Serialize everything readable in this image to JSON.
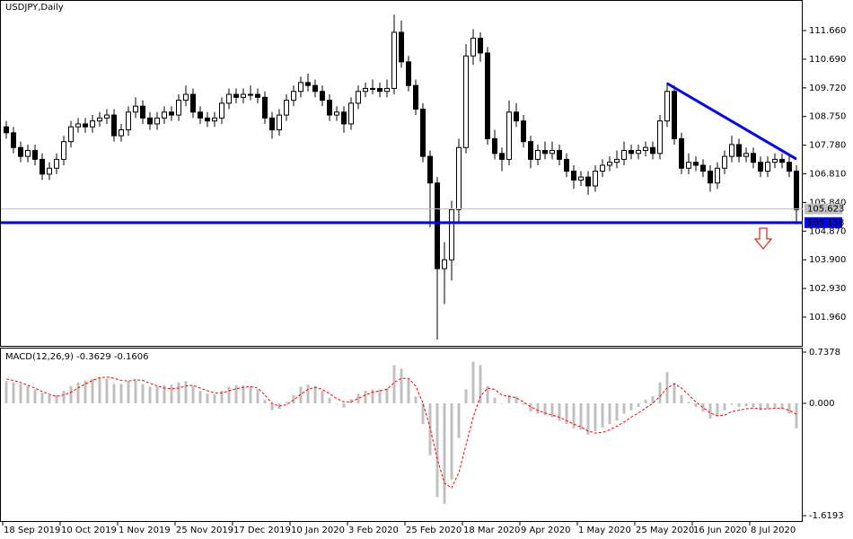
{
  "chart_data": [
    {
      "type": "candlestick",
      "title": "USDJPY,Daily",
      "categories": [
        "18 Sep 2019",
        null,
        null,
        null,
        null,
        null,
        null,
        null,
        "10 Oct 2019",
        null,
        null,
        null,
        null,
        null,
        null,
        null,
        "1 Nov 2019",
        null,
        null,
        null,
        null,
        null,
        null,
        null,
        "25 Nov 2019",
        null,
        null,
        null,
        null,
        null,
        null,
        null,
        "17 Dec 2019",
        null,
        null,
        null,
        null,
        null,
        null,
        null,
        "10 Jan 2020",
        null,
        null,
        null,
        null,
        null,
        null,
        null,
        "3 Feb 2020",
        null,
        null,
        null,
        null,
        null,
        null,
        null,
        "25 Feb 2020",
        null,
        null,
        null,
        null,
        null,
        null,
        null,
        "18 Mar 2020",
        null,
        null,
        null,
        null,
        null,
        null,
        null,
        "9 Apr 2020",
        null,
        null,
        null,
        null,
        null,
        null,
        null,
        "1 May 2020",
        null,
        null,
        null,
        null,
        null,
        null,
        null,
        "25 May 2020",
        null,
        null,
        null,
        null,
        null,
        null,
        null,
        "16 Jun 2020",
        null,
        null,
        null,
        null,
        null,
        null,
        null,
        "8 Jul 2020",
        null,
        null,
        null,
        null,
        null,
        null
      ],
      "candles": [
        [
          108.4,
          108.6,
          108.0,
          108.2
        ],
        [
          108.2,
          108.4,
          107.5,
          107.7
        ],
        [
          107.7,
          107.9,
          107.2,
          107.4
        ],
        [
          107.4,
          107.8,
          107.2,
          107.6
        ],
        [
          107.6,
          107.8,
          107.1,
          107.3
        ],
        [
          107.3,
          107.5,
          106.6,
          106.8
        ],
        [
          106.8,
          107.2,
          106.6,
          107.0
        ],
        [
          107.0,
          107.5,
          106.8,
          107.3
        ],
        [
          107.3,
          108.1,
          107.1,
          107.9
        ],
        [
          107.9,
          108.6,
          107.7,
          108.4
        ],
        [
          108.4,
          108.7,
          108.2,
          108.5
        ],
        [
          108.5,
          108.7,
          108.2,
          108.4
        ],
        [
          108.4,
          108.8,
          108.2,
          108.6
        ],
        [
          108.6,
          108.9,
          108.4,
          108.7
        ],
        [
          108.7,
          109.0,
          108.5,
          108.8
        ],
        [
          108.8,
          109.0,
          107.9,
          108.1
        ],
        [
          108.1,
          108.5,
          107.9,
          108.3
        ],
        [
          108.3,
          109.1,
          108.1,
          108.9
        ],
        [
          108.9,
          109.4,
          108.7,
          109.1
        ],
        [
          109.1,
          109.3,
          108.5,
          108.7
        ],
        [
          108.7,
          108.9,
          108.3,
          108.5
        ],
        [
          108.5,
          108.9,
          108.3,
          108.7
        ],
        [
          108.7,
          109.1,
          108.5,
          108.9
        ],
        [
          108.9,
          109.1,
          108.6,
          108.8
        ],
        [
          108.8,
          109.5,
          108.6,
          109.3
        ],
        [
          109.3,
          109.8,
          109.1,
          109.5
        ],
        [
          109.5,
          109.7,
          108.7,
          108.9
        ],
        [
          108.9,
          109.1,
          108.5,
          108.7
        ],
        [
          108.7,
          108.9,
          108.4,
          108.6
        ],
        [
          108.6,
          108.9,
          108.4,
          108.7
        ],
        [
          108.7,
          109.4,
          108.5,
          109.2
        ],
        [
          109.2,
          109.7,
          109.0,
          109.5
        ],
        [
          109.5,
          109.7,
          109.2,
          109.4
        ],
        [
          109.4,
          109.7,
          109.2,
          109.5
        ],
        [
          109.5,
          109.8,
          109.3,
          109.5
        ],
        [
          109.5,
          109.7,
          109.2,
          109.4
        ],
        [
          109.4,
          109.6,
          108.5,
          108.7
        ],
        [
          108.7,
          108.9,
          108.0,
          108.3
        ],
        [
          108.3,
          109.0,
          108.1,
          108.8
        ],
        [
          108.8,
          109.5,
          108.6,
          109.3
        ],
        [
          109.3,
          109.8,
          109.1,
          109.6
        ],
        [
          109.6,
          110.1,
          109.4,
          109.9
        ],
        [
          109.9,
          110.2,
          109.6,
          109.8
        ],
        [
          109.8,
          110.0,
          109.4,
          109.6
        ],
        [
          109.6,
          109.8,
          109.1,
          109.3
        ],
        [
          109.3,
          109.5,
          108.6,
          108.8
        ],
        [
          108.8,
          109.1,
          108.6,
          108.9
        ],
        [
          108.9,
          109.1,
          108.2,
          108.5
        ],
        [
          108.5,
          109.4,
          108.3,
          109.2
        ],
        [
          109.2,
          109.8,
          109.0,
          109.6
        ],
        [
          109.6,
          109.9,
          109.4,
          109.7
        ],
        [
          109.7,
          110.0,
          109.5,
          109.7
        ],
        [
          109.7,
          109.9,
          109.4,
          109.6
        ],
        [
          109.6,
          110.0,
          109.4,
          109.7
        ],
        [
          109.7,
          112.2,
          109.5,
          111.6
        ],
        [
          111.6,
          112.0,
          110.4,
          110.6
        ],
        [
          110.6,
          110.8,
          109.6,
          109.8
        ],
        [
          109.8,
          110.0,
          108.8,
          109.0
        ],
        [
          109.0,
          109.2,
          107.2,
          107.4
        ],
        [
          107.4,
          107.6,
          105.0,
          106.5
        ],
        [
          106.5,
          106.7,
          101.2,
          103.6
        ],
        [
          103.6,
          104.5,
          102.4,
          103.9
        ],
        [
          103.9,
          105.9,
          103.2,
          105.6
        ],
        [
          105.6,
          108.0,
          105.2,
          107.7
        ],
        [
          107.7,
          111.2,
          107.5,
          110.8
        ],
        [
          110.8,
          111.7,
          110.5,
          111.4
        ],
        [
          111.4,
          111.6,
          110.6,
          110.9
        ],
        [
          110.9,
          111.1,
          107.8,
          108.0
        ],
        [
          108.0,
          108.3,
          107.3,
          107.5
        ],
        [
          107.5,
          107.7,
          106.9,
          107.3
        ],
        [
          107.3,
          109.3,
          107.1,
          108.9
        ],
        [
          108.9,
          109.2,
          108.4,
          108.6
        ],
        [
          108.6,
          108.8,
          107.7,
          107.9
        ],
        [
          107.9,
          108.1,
          107.0,
          107.3
        ],
        [
          107.3,
          107.8,
          107.1,
          107.6
        ],
        [
          107.6,
          107.9,
          107.3,
          107.5
        ],
        [
          107.5,
          107.9,
          107.3,
          107.6
        ],
        [
          107.6,
          107.8,
          107.1,
          107.3
        ],
        [
          107.3,
          107.5,
          106.7,
          106.9
        ],
        [
          106.9,
          107.1,
          106.3,
          106.6
        ],
        [
          106.6,
          106.9,
          106.4,
          106.7
        ],
        [
          106.7,
          106.9,
          106.1,
          106.4
        ],
        [
          106.4,
          107.1,
          106.2,
          106.9
        ],
        [
          106.9,
          107.3,
          106.7,
          107.1
        ],
        [
          107.1,
          107.4,
          106.9,
          107.2
        ],
        [
          107.2,
          107.6,
          107.0,
          107.3
        ],
        [
          107.3,
          107.9,
          107.1,
          107.6
        ],
        [
          107.6,
          107.8,
          107.3,
          107.5
        ],
        [
          107.5,
          107.8,
          107.3,
          107.6
        ],
        [
          107.6,
          107.9,
          107.4,
          107.7
        ],
        [
          107.7,
          107.9,
          107.3,
          107.5
        ],
        [
          107.5,
          108.8,
          107.3,
          108.6
        ],
        [
          108.6,
          109.9,
          108.4,
          109.6
        ],
        [
          109.6,
          109.8,
          107.8,
          108.0
        ],
        [
          108.0,
          108.2,
          106.8,
          107.0
        ],
        [
          107.0,
          107.5,
          106.8,
          107.2
        ],
        [
          107.2,
          107.4,
          106.9,
          107.1
        ],
        [
          107.1,
          107.3,
          106.7,
          106.9
        ],
        [
          106.9,
          107.1,
          106.2,
          106.5
        ],
        [
          106.5,
          107.2,
          106.3,
          107.0
        ],
        [
          107.0,
          107.6,
          106.8,
          107.4
        ],
        [
          107.4,
          108.1,
          107.2,
          107.8
        ],
        [
          107.8,
          108.0,
          107.2,
          107.4
        ],
        [
          107.4,
          107.7,
          107.2,
          107.5
        ],
        [
          107.5,
          107.7,
          107.0,
          107.2
        ],
        [
          107.2,
          107.4,
          106.7,
          106.9
        ],
        [
          106.9,
          107.4,
          106.7,
          107.2
        ],
        [
          107.2,
          107.5,
          107.0,
          107.3
        ],
        [
          107.3,
          107.5,
          107.0,
          107.2
        ],
        [
          107.2,
          107.4,
          106.7,
          106.9
        ],
        [
          106.9,
          107.1,
          105.1,
          105.6
        ]
      ],
      "ylim": [
        100.987,
        112.633
      ],
      "yticks": [
        {
          "value": 111.66,
          "label": "111.660"
        },
        {
          "value": 110.69,
          "label": "110.690"
        },
        {
          "value": 109.72,
          "label": "109.720"
        },
        {
          "value": 108.75,
          "label": "108.750"
        },
        {
          "value": 107.78,
          "label": "107.780"
        },
        {
          "value": 106.81,
          "label": "106.810"
        },
        {
          "value": 105.84,
          "label": "105.840"
        },
        {
          "value": 104.87,
          "label": "104.870"
        },
        {
          "value": 103.9,
          "label": "103.900"
        },
        {
          "value": 102.93,
          "label": "102.930"
        },
        {
          "value": 101.96,
          "label": "101.960"
        }
      ],
      "current_price": {
        "value": 105.623,
        "label": "105.623",
        "color": "#c0c0c0"
      },
      "support": {
        "value": 105.158,
        "label": "105.158",
        "color": "#0000ff"
      },
      "trendline": {
        "x": [
          92,
          110
        ],
        "values": [
          109.87,
          107.31
        ],
        "color": "#0000ff"
      }
    },
    {
      "type": "macd",
      "title": "MACD(12,26,9) -0.3629 -0.1606",
      "ylim": [
        -1.6193,
        0.7378
      ],
      "yticks": [
        0.7378,
        {
          "value": 0,
          "label": "0.000"
        },
        -1.6193
      ],
      "series": [
        {
          "color": "#c0c0c0",
          "values": [
            0.32,
            0.3,
            0.28,
            0.25,
            0.2,
            0.15,
            0.12,
            0.12,
            0.18,
            0.25,
            0.3,
            0.33,
            0.35,
            0.36,
            0.35,
            0.28,
            0.28,
            0.32,
            0.33,
            0.28,
            0.24,
            0.24,
            0.26,
            0.27,
            0.3,
            0.32,
            0.25,
            0.18,
            0.14,
            0.13,
            0.18,
            0.24,
            0.26,
            0.26,
            0.24,
            0.2,
            0.05,
            -0.1,
            -0.08,
            0.02,
            0.12,
            0.24,
            0.27,
            0.25,
            0.18,
            0.08,
            0,
            -0.06,
            0.06,
            0.14,
            0.18,
            0.2,
            0.2,
            0.22,
            0.55,
            0.5,
            0.36,
            0.1,
            -0.3,
            -0.75,
            -1.35,
            -1.45,
            -1.1,
            -0.5,
            0.2,
            0.6,
            0.55,
            0.25,
            0.08,
            0,
            0.12,
            0.1,
            -0.02,
            -0.12,
            -0.15,
            -0.17,
            -0.2,
            -0.25,
            -0.3,
            -0.36,
            -0.38,
            -0.45,
            -0.4,
            -0.35,
            -0.3,
            -0.25,
            -0.15,
            -0.1,
            -0.05,
            0.05,
            0.1,
            0.3,
            0.45,
            0.3,
            0.12,
            0.02,
            -0.05,
            -0.12,
            -0.22,
            -0.18,
            -0.1,
            -0.02,
            -0.05,
            -0.04,
            -0.06,
            -0.1,
            -0.08,
            -0.06,
            -0.08,
            -0.15,
            -0.36
          ]
        },
        {
          "color": "#ff0000",
          "values": [
            0.35,
            0.33,
            0.3,
            0.26,
            0.22,
            0.17,
            0.13,
            0.1,
            0.12,
            0.16,
            0.22,
            0.28,
            0.33,
            0.37,
            0.38,
            0.36,
            0.33,
            0.32,
            0.34,
            0.33,
            0.29,
            0.25,
            0.22,
            0.21,
            0.22,
            0.25,
            0.26,
            0.22,
            0.18,
            0.15,
            0.15,
            0.18,
            0.21,
            0.23,
            0.24,
            0.22,
            0.12,
            0,
            -0.04,
            -0.02,
            0.05,
            0.13,
            0.2,
            0.23,
            0.2,
            0.14,
            0.07,
            0.02,
            0.02,
            0.07,
            0.12,
            0.16,
            0.18,
            0.2,
            0.3,
            0.36,
            0.36,
            0.25,
            0,
            -0.35,
            -0.8,
            -1.15,
            -1.22,
            -1,
            -0.6,
            -0.2,
            0.1,
            0.22,
            0.2,
            0.12,
            0.1,
            0.08,
            0.02,
            -0.05,
            -0.1,
            -0.14,
            -0.17,
            -0.2,
            -0.25,
            -0.3,
            -0.34,
            -0.4,
            -0.43,
            -0.42,
            -0.38,
            -0.33,
            -0.27,
            -0.2,
            -0.14,
            -0.07,
            0,
            0.1,
            0.22,
            0.28,
            0.22,
            0.12,
            0.02,
            -0.06,
            -0.14,
            -0.18,
            -0.17,
            -0.12,
            -0.1,
            -0.08,
            -0.07,
            -0.08,
            -0.08,
            -0.07,
            -0.07,
            -0.1,
            -0.16
          ]
        }
      ]
    }
  ]
}
